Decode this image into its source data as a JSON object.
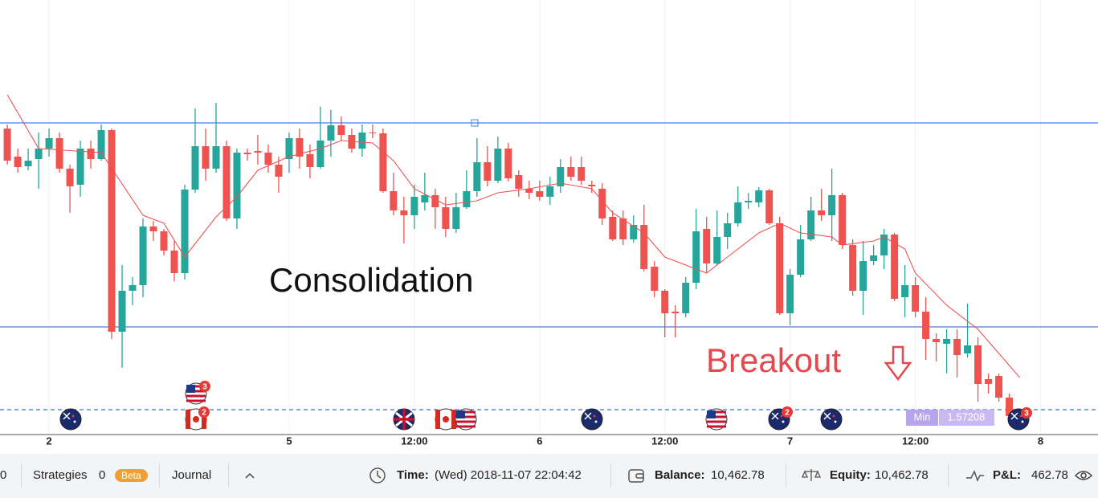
{
  "chart_data": {
    "type": "candlestick",
    "xlim": [
      -0.7,
      104.5
    ],
    "ylim": [
      1.57188,
      1.57728
    ],
    "grid": true,
    "up_color": "#26a69a",
    "down_color": "#ef5350",
    "xticks": [
      {
        "value": 4,
        "label": "2"
      },
      {
        "value": 27,
        "label": "5"
      },
      {
        "value": 39,
        "label": "12:00"
      },
      {
        "value": 51,
        "label": "6"
      },
      {
        "value": 63,
        "label": "12:00"
      },
      {
        "value": 75,
        "label": "7"
      },
      {
        "value": 87,
        "label": "12:00"
      },
      {
        "value": 99,
        "label": "8"
      }
    ],
    "candles": {
      "open": [
        1.57568,
        1.57533,
        1.57521,
        1.5753,
        1.57543,
        1.57556,
        1.57518,
        1.57498,
        1.57543,
        1.5753,
        1.57566,
        1.57315,
        1.57366,
        1.57373,
        1.57446,
        1.5744,
        1.57416,
        1.57388,
        1.57492,
        1.57546,
        1.57518,
        1.57546,
        1.57456,
        1.57538,
        1.5754,
        1.57538,
        1.57523,
        1.5753,
        1.57556,
        1.57536,
        1.5752,
        1.57553,
        1.57572,
        1.5756,
        1.57543,
        1.57563,
        1.57562,
        1.5749,
        1.57466,
        1.5746,
        1.57476,
        1.57485,
        1.5747,
        1.57443,
        1.5747,
        1.5749,
        1.57526,
        1.57503,
        1.57543,
        1.5751,
        1.57493,
        1.5749,
        1.57483,
        1.57496,
        1.5752,
        1.5752,
        1.57498,
        1.57493,
        1.57458,
        1.57456,
        1.5743,
        1.57448,
        1.57396,
        1.57366,
        1.5734,
        1.57338,
        1.57376,
        1.57443,
        1.574,
        1.57433,
        1.5745,
        1.57476,
        1.57476,
        1.57491,
        1.5745,
        1.57338,
        1.57386,
        1.5743,
        1.57466,
        1.5746,
        1.57485,
        1.57423,
        1.57366,
        1.57403,
        1.5741,
        1.57436,
        1.57358,
        1.57373,
        1.5734,
        1.57306,
        1.573,
        1.57306,
        1.57288,
        1.57298,
        1.57256,
        1.5726,
        1.57233
      ],
      "high": [
        1.57573,
        1.57543,
        1.57543,
        1.57563,
        1.57568,
        1.57563,
        1.57523,
        1.57553,
        1.57553,
        1.57573,
        1.57568,
        1.57398,
        1.57383,
        1.57456,
        1.57453,
        1.57443,
        1.57428,
        1.57498,
        1.57593,
        1.57568,
        1.576,
        1.57553,
        1.57543,
        1.57543,
        1.5756,
        1.57548,
        1.57533,
        1.57563,
        1.57568,
        1.57548,
        1.57595,
        1.57591,
        1.57583,
        1.57568,
        1.57573,
        1.57573,
        1.57568,
        1.57513,
        1.57483,
        1.57498,
        1.57513,
        1.57493,
        1.57483,
        1.57488,
        1.57516,
        1.57556,
        1.57546,
        1.57558,
        1.5755,
        1.57516,
        1.57503,
        1.57503,
        1.57508,
        1.5753,
        1.57533,
        1.57533,
        1.57503,
        1.575,
        1.57466,
        1.57466,
        1.5746,
        1.57473,
        1.57403,
        1.57368,
        1.57348,
        1.57383,
        1.57468,
        1.57458,
        1.57466,
        1.57463,
        1.57496,
        1.57488,
        1.57495,
        1.57493,
        1.57458,
        1.57393,
        1.57448,
        1.57483,
        1.57493,
        1.57518,
        1.57488,
        1.5743,
        1.57428,
        1.57423,
        1.57443,
        1.57438,
        1.57398,
        1.57383,
        1.57358,
        1.57313,
        1.57318,
        1.57318,
        1.5735,
        1.57308,
        1.57263,
        1.57263,
        1.57238
      ],
      "low": [
        1.57523,
        1.57513,
        1.57516,
        1.57493,
        1.57533,
        1.57513,
        1.57463,
        1.57483,
        1.57518,
        1.57528,
        1.57306,
        1.5727,
        1.57348,
        1.57358,
        1.57428,
        1.5741,
        1.57378,
        1.5738,
        1.57488,
        1.57503,
        1.57513,
        1.57453,
        1.57443,
        1.57528,
        1.57523,
        1.57513,
        1.57488,
        1.57513,
        1.57518,
        1.57506,
        1.57518,
        1.57533,
        1.57553,
        1.57538,
        1.57533,
        1.57556,
        1.57488,
        1.5746,
        1.57425,
        1.57443,
        1.57466,
        1.57443,
        1.57433,
        1.57438,
        1.57468,
        1.57483,
        1.57496,
        1.575,
        1.57502,
        1.57483,
        1.5748,
        1.57478,
        1.57473,
        1.57488,
        1.57503,
        1.57498,
        1.57488,
        1.57448,
        1.57428,
        1.57423,
        1.57426,
        1.5739,
        1.57358,
        1.57308,
        1.57308,
        1.57333,
        1.57368,
        1.57388,
        1.57398,
        1.57418,
        1.57446,
        1.57468,
        1.5747,
        1.57448,
        1.57336,
        1.57323,
        1.57383,
        1.57428,
        1.57453,
        1.57428,
        1.57418,
        1.5736,
        1.57336,
        1.57398,
        1.57393,
        1.57353,
        1.57333,
        1.57333,
        1.5728,
        1.57278,
        1.57263,
        1.57258,
        1.57283,
        1.57228,
        1.57238,
        1.57228,
        1.57208
      ],
      "close": [
        1.57528,
        1.5752,
        1.57528,
        1.57543,
        1.57556,
        1.57518,
        1.57496,
        1.57543,
        1.5753,
        1.57566,
        1.57315,
        1.57366,
        1.57373,
        1.57446,
        1.5744,
        1.57416,
        1.57388,
        1.57492,
        1.57546,
        1.57518,
        1.57546,
        1.57456,
        1.57538,
        1.57536,
        1.57538,
        1.57523,
        1.57508,
        1.57556,
        1.57533,
        1.5752,
        1.57553,
        1.57572,
        1.5756,
        1.57543,
        1.57563,
        1.57562,
        1.5749,
        1.57466,
        1.5746,
        1.57483,
        1.57485,
        1.5747,
        1.57443,
        1.5747,
        1.5749,
        1.57526,
        1.57503,
        1.57543,
        1.57506,
        1.57493,
        1.57488,
        1.57483,
        1.57496,
        1.5752,
        1.57508,
        1.57503,
        1.57496,
        1.57456,
        1.5743,
        1.5743,
        1.57448,
        1.57393,
        1.57366,
        1.57338,
        1.57338,
        1.57376,
        1.5744,
        1.574,
        1.57433,
        1.5745,
        1.57476,
        1.57478,
        1.57491,
        1.5745,
        1.57338,
        1.57386,
        1.5743,
        1.57466,
        1.5746,
        1.57485,
        1.57423,
        1.57366,
        1.57403,
        1.5741,
        1.57436,
        1.57356,
        1.57373,
        1.5734,
        1.57306,
        1.57302,
        1.57306,
        1.57286,
        1.57298,
        1.5725,
        1.5725,
        1.57233,
        1.5721
      ]
    },
    "ma": {
      "color": "#ef5350",
      "x": [
        0,
        3,
        9,
        13,
        15,
        17,
        20,
        22,
        24,
        27,
        30,
        32,
        35,
        37,
        39,
        42,
        45,
        47,
        50,
        53,
        56,
        58,
        61,
        63,
        66,
        67,
        69,
        72,
        74,
        76,
        79,
        80,
        83,
        84,
        86,
        87,
        90,
        93,
        95,
        97
      ],
      "values": [
        1.5761,
        1.57543,
        1.57538,
        1.5746,
        1.5745,
        1.57408,
        1.57458,
        1.57483,
        1.57516,
        1.57533,
        1.57543,
        1.57553,
        1.5755,
        1.57528,
        1.57493,
        1.57473,
        1.57478,
        1.57488,
        1.57493,
        1.575,
        1.57493,
        1.57463,
        1.57438,
        1.57408,
        1.57393,
        1.57388,
        1.57408,
        1.57438,
        1.5745,
        1.57438,
        1.57433,
        1.57423,
        1.57428,
        1.57433,
        1.57418,
        1.57388,
        1.57348,
        1.57318,
        1.57288,
        1.57258
      ]
    },
    "levels": [
      {
        "value": 1.57575,
        "color": "#4a7fe0",
        "style": "solid"
      },
      {
        "value": 1.57321,
        "color": "#4a7fe0",
        "style": "solid"
      },
      {
        "value": 1.57218,
        "color": "#3b6fe0",
        "style": "dashed"
      }
    ],
    "min_label": {
      "text": "Min",
      "value": 1.57208
    },
    "annotations": [
      "Consolidation",
      "Breakout"
    ]
  },
  "event_badges": [
    "3",
    "2",
    "2",
    "3"
  ],
  "toolbar": {
    "count": "0",
    "strategies": {
      "label": "Strategies",
      "count": "0",
      "badge": "Beta"
    },
    "journal": "Journal",
    "time": {
      "label": "Time:",
      "value": "(Wed) 2018-11-07 22:04:42"
    },
    "balance": {
      "label": "Balance:",
      "value": "10,462.78"
    },
    "equity": {
      "label": "Equity:",
      "value": "10,462.78"
    },
    "pnl": {
      "label": "P&L:",
      "value": "462.78"
    }
  }
}
